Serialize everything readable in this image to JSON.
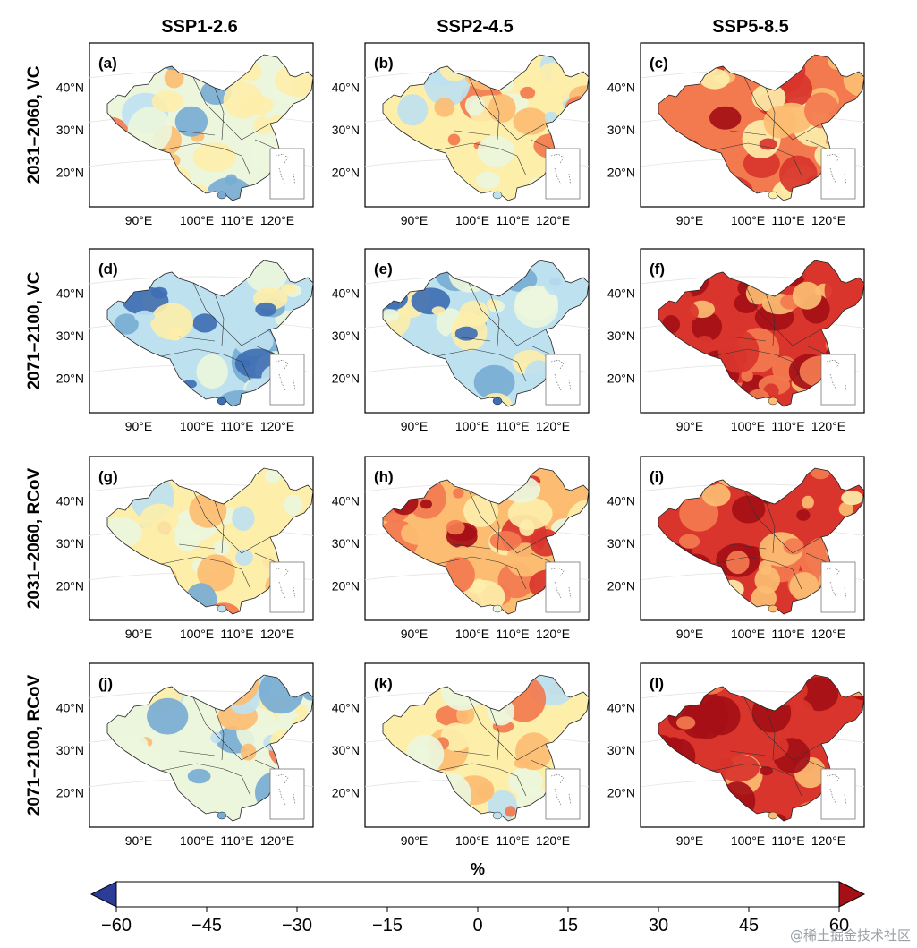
{
  "chart_data": {
    "type": "heatmap",
    "title": "",
    "columns": [
      "SSP1-2.6",
      "SSP2-4.5",
      "SSP5-8.5"
    ],
    "rows": [
      "2031–2060, VC",
      "2071–2100, VC",
      "2031–2060, RCoV",
      "2071–2100, RCoV"
    ],
    "panel_labels": [
      "(a)",
      "(b)",
      "(c)",
      "(d)",
      "(e)",
      "(f)",
      "(g)",
      "(h)",
      "(i)",
      "(j)",
      "(k)",
      "(l)"
    ],
    "xlabel": "",
    "ylabel": "",
    "x_ticks": [
      "90°E",
      "100°E",
      "110°E",
      "120°E"
    ],
    "y_ticks": [
      "40°N",
      "30°N",
      "20°N"
    ],
    "colorbar": {
      "label": "%",
      "ticks": [
        -60,
        -45,
        -30,
        -15,
        0,
        15,
        30,
        45,
        60
      ],
      "tick_labels": [
        "−60",
        "−45",
        "−30",
        "−15",
        "0",
        "15",
        "30",
        "45",
        "60"
      ],
      "colors": [
        "#2b3d96",
        "#3f6fb3",
        "#78acd4",
        "#bee1f0",
        "#ecf6dc",
        "#fdeeaa",
        "#fcbd72",
        "#f37a4f",
        "#d9352c",
        "#a50f16"
      ],
      "extend": "both"
    },
    "panels": [
      {
        "label": "(a)",
        "scenario": "SSP1-2.6",
        "period": "2031–2060",
        "metric": "VC",
        "mean_change": -8
      },
      {
        "label": "(b)",
        "scenario": "SSP2-4.5",
        "period": "2031–2060",
        "metric": "VC",
        "mean_change": 6
      },
      {
        "label": "(c)",
        "scenario": "SSP5-8.5",
        "period": "2031–2060",
        "metric": "VC",
        "mean_change": 30
      },
      {
        "label": "(d)",
        "scenario": "SSP1-2.6",
        "period": "2071–2100",
        "metric": "VC",
        "mean_change": -22
      },
      {
        "label": "(e)",
        "scenario": "SSP2-4.5",
        "period": "2071–2100",
        "metric": "VC",
        "mean_change": -20
      },
      {
        "label": "(f)",
        "scenario": "SSP5-8.5",
        "period": "2071–2100",
        "metric": "VC",
        "mean_change": 48
      },
      {
        "label": "(g)",
        "scenario": "SSP1-2.6",
        "period": "2031–2060",
        "metric": "RCoV",
        "mean_change": 2
      },
      {
        "label": "(h)",
        "scenario": "SSP2-4.5",
        "period": "2031–2060",
        "metric": "RCoV",
        "mean_change": 28
      },
      {
        "label": "(i)",
        "scenario": "SSP5-8.5",
        "period": "2031–2060",
        "metric": "RCoV",
        "mean_change": 45
      },
      {
        "label": "(j)",
        "scenario": "SSP1-2.6",
        "period": "2071–2100",
        "metric": "RCoV",
        "mean_change": -4
      },
      {
        "label": "(k)",
        "scenario": "SSP2-4.5",
        "period": "2071–2100",
        "metric": "RCoV",
        "mean_change": 8
      },
      {
        "label": "(l)",
        "scenario": "SSP5-8.5",
        "period": "2071–2100",
        "metric": "RCoV",
        "mean_change": 58
      }
    ]
  },
  "watermark": "@稀土掘金技术社区"
}
